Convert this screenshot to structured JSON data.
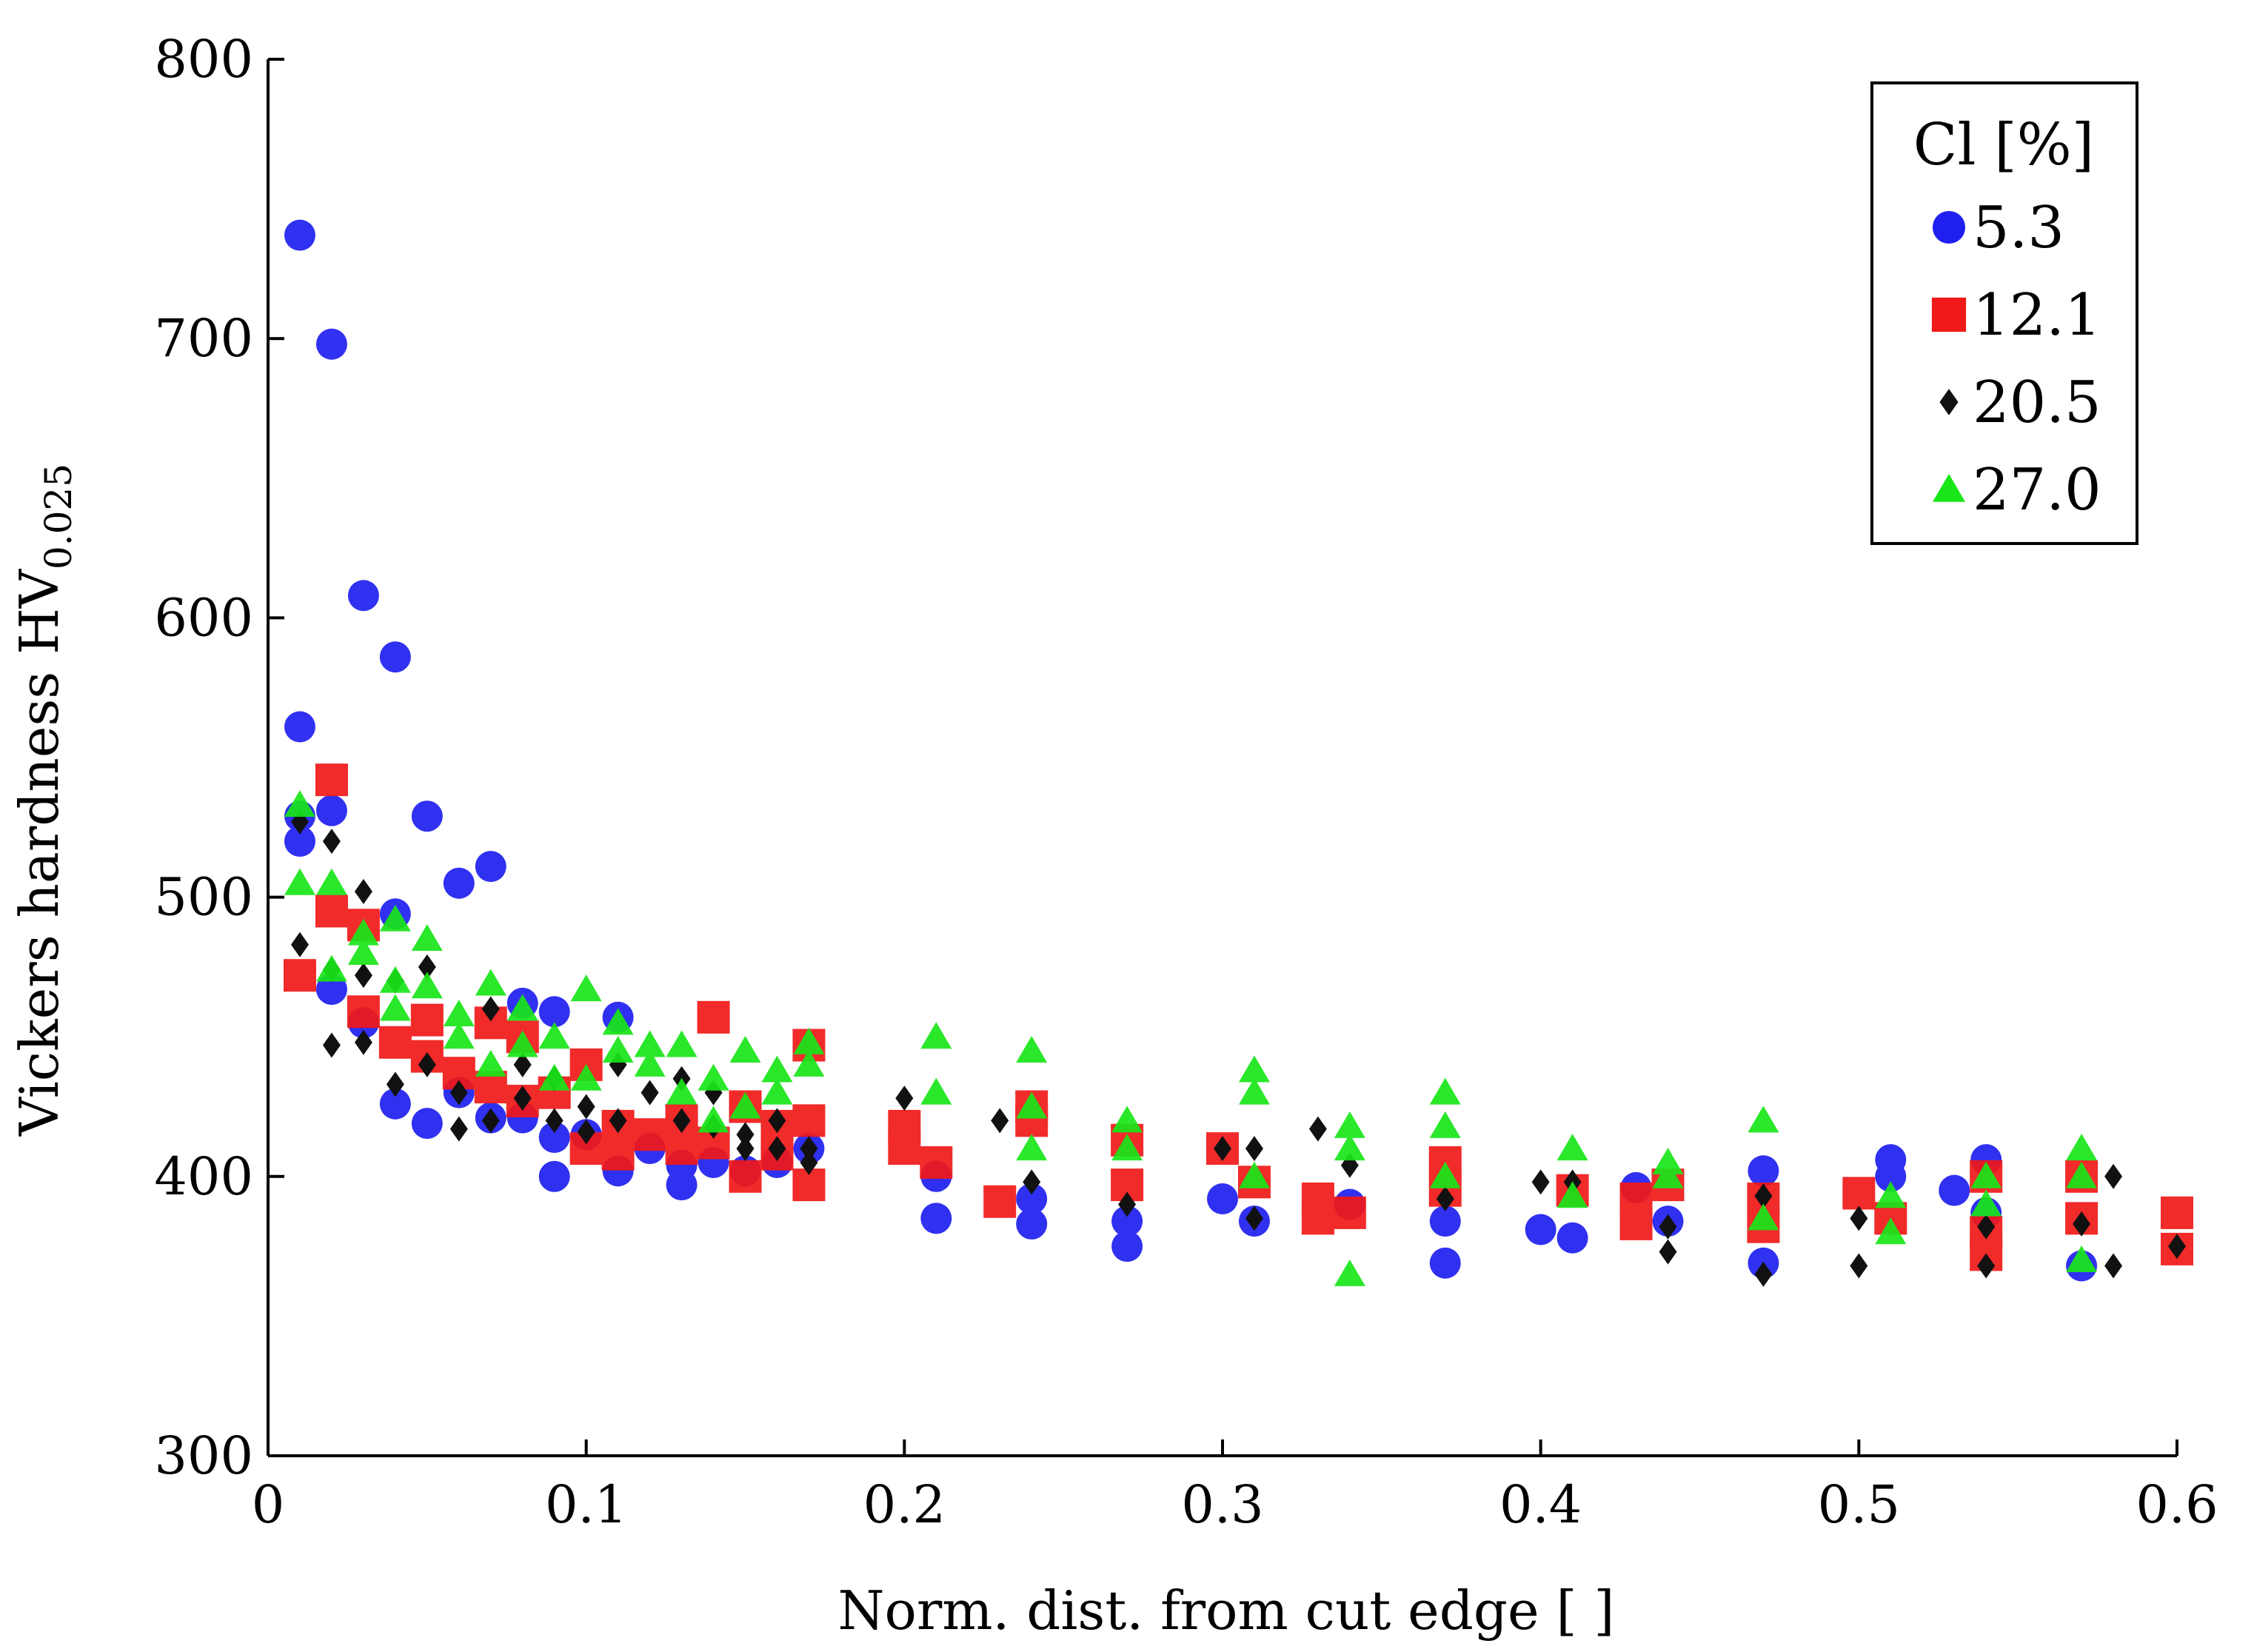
{
  "chart_data": {
    "type": "scatter",
    "title": "",
    "xlabel": "Norm. dist. from cut edge [ ]",
    "ylabel": "Vickers hardness HV",
    "ylabel_sub": "0.025",
    "xlim": [
      0,
      0.6
    ],
    "ylim": [
      300,
      800
    ],
    "xticks": [
      0,
      0.1,
      0.2,
      0.3,
      0.4,
      0.5,
      0.6
    ],
    "xtick_labels": [
      "0",
      "0.1",
      "0.2",
      "0.3",
      "0.4",
      "0.5",
      "0.6"
    ],
    "yticks": [
      300,
      400,
      500,
      600,
      700,
      800
    ],
    "ytick_labels": [
      "300",
      "400",
      "500",
      "600",
      "700",
      "800"
    ],
    "grid": false,
    "legend": {
      "title": "Cl [%]",
      "position": "top-right"
    },
    "series": [
      {
        "name": "5.3",
        "marker": "circle",
        "color": "#1f1ff0",
        "points": [
          [
            0.01,
            737
          ],
          [
            0.02,
            698
          ],
          [
            0.03,
            608
          ],
          [
            0.04,
            586
          ],
          [
            0.01,
            561
          ],
          [
            0.02,
            531
          ],
          [
            0.01,
            529
          ],
          [
            0.01,
            520
          ],
          [
            0.05,
            529
          ],
          [
            0.06,
            505
          ],
          [
            0.07,
            511
          ],
          [
            0.04,
            494
          ],
          [
            0.02,
            467
          ],
          [
            0.03,
            455
          ],
          [
            0.04,
            426
          ],
          [
            0.05,
            419
          ],
          [
            0.06,
            430
          ],
          [
            0.07,
            421
          ],
          [
            0.08,
            462
          ],
          [
            0.09,
            459
          ],
          [
            0.08,
            421
          ],
          [
            0.09,
            414
          ],
          [
            0.09,
            400
          ],
          [
            0.1,
            415
          ],
          [
            0.11,
            457
          ],
          [
            0.11,
            402
          ],
          [
            0.12,
            410
          ],
          [
            0.13,
            397
          ],
          [
            0.13,
            404
          ],
          [
            0.14,
            405
          ],
          [
            0.15,
            402
          ],
          [
            0.16,
            405
          ],
          [
            0.17,
            410
          ],
          [
            0.21,
            400
          ],
          [
            0.21,
            385
          ],
          [
            0.24,
            392
          ],
          [
            0.24,
            383
          ],
          [
            0.27,
            384
          ],
          [
            0.27,
            375
          ],
          [
            0.3,
            392
          ],
          [
            0.31,
            384
          ],
          [
            0.34,
            390
          ],
          [
            0.37,
            384
          ],
          [
            0.37,
            369
          ],
          [
            0.4,
            381
          ],
          [
            0.41,
            378
          ],
          [
            0.43,
            396
          ],
          [
            0.44,
            384
          ],
          [
            0.47,
            402
          ],
          [
            0.47,
            369
          ],
          [
            0.51,
            406
          ],
          [
            0.51,
            400
          ],
          [
            0.53,
            395
          ],
          [
            0.54,
            406
          ],
          [
            0.54,
            387
          ],
          [
            0.57,
            368
          ]
        ]
      },
      {
        "name": "12.1",
        "marker": "square",
        "color": "#f01818",
        "points": [
          [
            0.01,
            472
          ],
          [
            0.02,
            542
          ],
          [
            0.02,
            495
          ],
          [
            0.03,
            490
          ],
          [
            0.03,
            459
          ],
          [
            0.04,
            448
          ],
          [
            0.05,
            456
          ],
          [
            0.05,
            443
          ],
          [
            0.06,
            437
          ],
          [
            0.07,
            432
          ],
          [
            0.07,
            455
          ],
          [
            0.08,
            450
          ],
          [
            0.08,
            427
          ],
          [
            0.09,
            430
          ],
          [
            0.1,
            410
          ],
          [
            0.1,
            440
          ],
          [
            0.11,
            418
          ],
          [
            0.11,
            408
          ],
          [
            0.12,
            415
          ],
          [
            0.13,
            420
          ],
          [
            0.13,
            410
          ],
          [
            0.14,
            457
          ],
          [
            0.14,
            412
          ],
          [
            0.15,
            425
          ],
          [
            0.15,
            400
          ],
          [
            0.16,
            418
          ],
          [
            0.16,
            408
          ],
          [
            0.17,
            447
          ],
          [
            0.17,
            420
          ],
          [
            0.17,
            397
          ],
          [
            0.2,
            418
          ],
          [
            0.2,
            410
          ],
          [
            0.21,
            405
          ],
          [
            0.23,
            391
          ],
          [
            0.24,
            425
          ],
          [
            0.24,
            420
          ],
          [
            0.27,
            413
          ],
          [
            0.27,
            397
          ],
          [
            0.3,
            410
          ],
          [
            0.31,
            398
          ],
          [
            0.33,
            392
          ],
          [
            0.33,
            385
          ],
          [
            0.34,
            387
          ],
          [
            0.37,
            405
          ],
          [
            0.37,
            395
          ],
          [
            0.41,
            395
          ],
          [
            0.43,
            392
          ],
          [
            0.43,
            383
          ],
          [
            0.44,
            397
          ],
          [
            0.47,
            392
          ],
          [
            0.47,
            382
          ],
          [
            0.5,
            394
          ],
          [
            0.51,
            385
          ],
          [
            0.54,
            400
          ],
          [
            0.54,
            380
          ],
          [
            0.54,
            372
          ],
          [
            0.57,
            400
          ],
          [
            0.57,
            385
          ],
          [
            0.6,
            387
          ],
          [
            0.6,
            374
          ]
        ]
      },
      {
        "name": "20.5",
        "marker": "diamond",
        "color": "#111111",
        "points": [
          [
            0.01,
            483
          ],
          [
            0.01,
            527
          ],
          [
            0.02,
            520
          ],
          [
            0.02,
            474
          ],
          [
            0.02,
            447
          ],
          [
            0.03,
            502
          ],
          [
            0.03,
            472
          ],
          [
            0.03,
            448
          ],
          [
            0.04,
            433
          ],
          [
            0.04,
            470
          ],
          [
            0.05,
            475
          ],
          [
            0.05,
            440
          ],
          [
            0.06,
            430
          ],
          [
            0.06,
            417
          ],
          [
            0.07,
            460
          ],
          [
            0.07,
            420
          ],
          [
            0.08,
            440
          ],
          [
            0.08,
            428
          ],
          [
            0.09,
            435
          ],
          [
            0.09,
            420
          ],
          [
            0.1,
            425
          ],
          [
            0.1,
            416
          ],
          [
            0.11,
            440
          ],
          [
            0.11,
            420
          ],
          [
            0.12,
            430
          ],
          [
            0.13,
            435
          ],
          [
            0.13,
            420
          ],
          [
            0.14,
            418
          ],
          [
            0.14,
            430
          ],
          [
            0.15,
            410
          ],
          [
            0.15,
            415
          ],
          [
            0.16,
            420
          ],
          [
            0.16,
            410
          ],
          [
            0.17,
            410
          ],
          [
            0.17,
            405
          ],
          [
            0.2,
            428
          ],
          [
            0.23,
            420
          ],
          [
            0.24,
            398
          ],
          [
            0.27,
            390
          ],
          [
            0.3,
            410
          ],
          [
            0.31,
            410
          ],
          [
            0.31,
            385
          ],
          [
            0.33,
            417
          ],
          [
            0.34,
            404
          ],
          [
            0.37,
            392
          ],
          [
            0.4,
            398
          ],
          [
            0.41,
            398
          ],
          [
            0.44,
            382
          ],
          [
            0.44,
            373
          ],
          [
            0.47,
            393
          ],
          [
            0.47,
            365
          ],
          [
            0.5,
            385
          ],
          [
            0.5,
            368
          ],
          [
            0.54,
            382
          ],
          [
            0.54,
            368
          ],
          [
            0.57,
            383
          ],
          [
            0.58,
            400
          ],
          [
            0.58,
            368
          ],
          [
            0.6,
            375
          ]
        ]
      },
      {
        "name": "27.0",
        "marker": "triangle",
        "color": "#19e619",
        "points": [
          [
            0.01,
            533
          ],
          [
            0.01,
            505
          ],
          [
            0.02,
            505
          ],
          [
            0.02,
            474
          ],
          [
            0.03,
            487
          ],
          [
            0.03,
            480
          ],
          [
            0.04,
            492
          ],
          [
            0.04,
            470
          ],
          [
            0.04,
            460
          ],
          [
            0.05,
            485
          ],
          [
            0.05,
            468
          ],
          [
            0.06,
            458
          ],
          [
            0.06,
            450
          ],
          [
            0.07,
            469
          ],
          [
            0.07,
            440
          ],
          [
            0.08,
            460
          ],
          [
            0.08,
            447
          ],
          [
            0.09,
            450
          ],
          [
            0.09,
            435
          ],
          [
            0.1,
            467
          ],
          [
            0.1,
            435
          ],
          [
            0.11,
            445
          ],
          [
            0.11,
            455
          ],
          [
            0.12,
            447
          ],
          [
            0.12,
            440
          ],
          [
            0.13,
            447
          ],
          [
            0.13,
            430
          ],
          [
            0.14,
            435
          ],
          [
            0.14,
            420
          ],
          [
            0.15,
            445
          ],
          [
            0.15,
            425
          ],
          [
            0.16,
            438
          ],
          [
            0.16,
            430
          ],
          [
            0.17,
            448
          ],
          [
            0.17,
            440
          ],
          [
            0.21,
            450
          ],
          [
            0.21,
            430
          ],
          [
            0.24,
            445
          ],
          [
            0.24,
            425
          ],
          [
            0.24,
            410
          ],
          [
            0.27,
            420
          ],
          [
            0.27,
            410
          ],
          [
            0.31,
            438
          ],
          [
            0.31,
            430
          ],
          [
            0.31,
            400
          ],
          [
            0.34,
            418
          ],
          [
            0.34,
            410
          ],
          [
            0.34,
            365
          ],
          [
            0.37,
            430
          ],
          [
            0.37,
            418
          ],
          [
            0.37,
            400
          ],
          [
            0.41,
            410
          ],
          [
            0.41,
            393
          ],
          [
            0.44,
            405
          ],
          [
            0.44,
            400
          ],
          [
            0.47,
            420
          ],
          [
            0.47,
            385
          ],
          [
            0.51,
            393
          ],
          [
            0.51,
            380
          ],
          [
            0.54,
            400
          ],
          [
            0.54,
            390
          ],
          [
            0.57,
            410
          ],
          [
            0.57,
            400
          ],
          [
            0.57,
            370
          ]
        ]
      }
    ]
  }
}
